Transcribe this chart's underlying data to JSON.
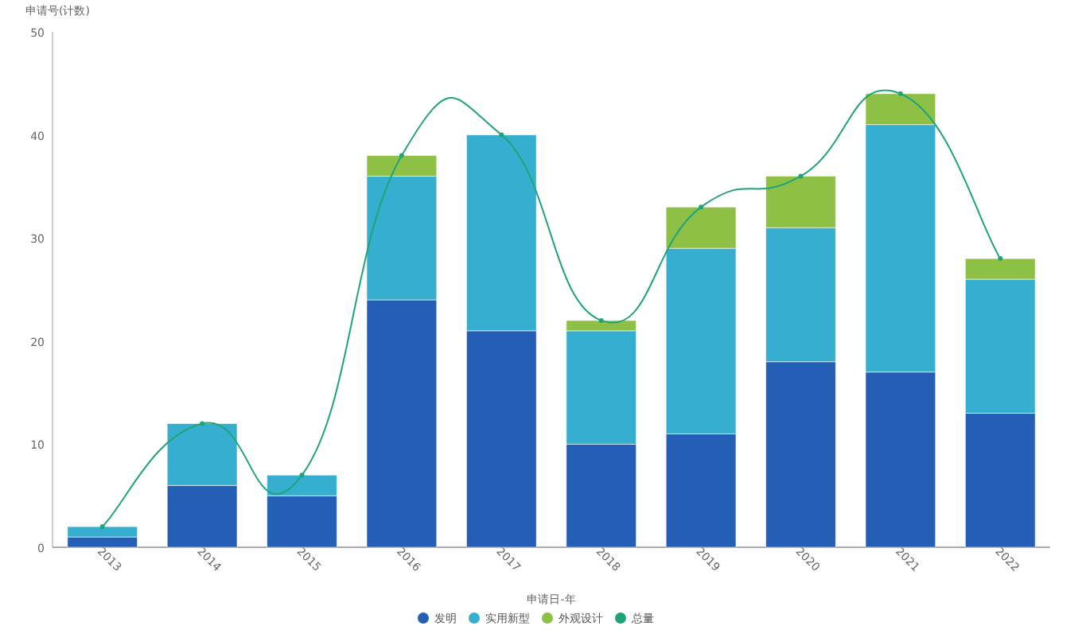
{
  "chart_data": {
    "type": "bar",
    "stacked": true,
    "ylabel": "申请号(计数)",
    "xlabel": "申请日-年",
    "categories": [
      "2013",
      "2014",
      "2015",
      "2016",
      "2017",
      "2018",
      "2019",
      "2020",
      "2021",
      "2022"
    ],
    "series": [
      {
        "name": "发明",
        "color": "#255fb5",
        "values": [
          1,
          6,
          5,
          24,
          21,
          10,
          11,
          18,
          17,
          13
        ]
      },
      {
        "name": "实用新型",
        "color": "#36aecf",
        "values": [
          1,
          6,
          2,
          12,
          19,
          11,
          18,
          13,
          24,
          13
        ]
      },
      {
        "name": "外观设计",
        "color": "#8dc045",
        "values": [
          0,
          0,
          0,
          2,
          0,
          1,
          4,
          5,
          3,
          2
        ]
      },
      {
        "name": "总量",
        "color": "#1fa479",
        "type": "line",
        "marker": "circle",
        "values": [
          2,
          12,
          7,
          38,
          40,
          22,
          33,
          36,
          44,
          28
        ]
      }
    ],
    "ylim": [
      0,
      50
    ],
    "yticks": [
      0,
      10,
      20,
      30,
      40,
      50
    ],
    "grid": false,
    "legend": "bottom"
  }
}
